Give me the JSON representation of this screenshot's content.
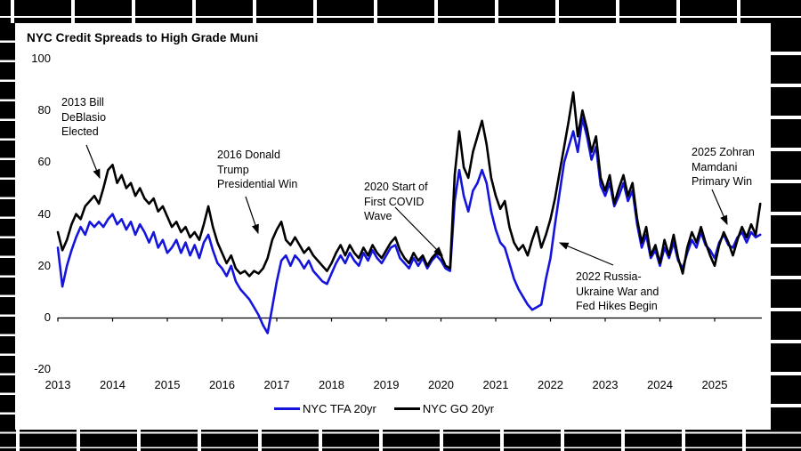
{
  "title": "NYC Credit Spreads to High Grade Muni",
  "colors": {
    "tfa": "#1414DC",
    "go": "#000000",
    "axis": "#000000",
    "background": "#ffffff",
    "border": "#000000"
  },
  "legend": [
    {
      "label": "NYC TFA 20yr",
      "color_key": "tfa"
    },
    {
      "label": "NYC GO 20yr",
      "color_key": "go"
    }
  ],
  "annotations": [
    {
      "lines": [
        "2013 Bill",
        "DeBlasio",
        "Elected"
      ]
    },
    {
      "lines": [
        "2016 Donald",
        "Trump",
        "Presidential Win"
      ]
    },
    {
      "lines": [
        "2020 Start of",
        "First COVID",
        "Wave"
      ]
    },
    {
      "lines": [
        "2022 Russia-",
        "Ukraine War and",
        "Fed Hikes Begin"
      ]
    },
    {
      "lines": [
        "2025 Zohran",
        "Mamdani",
        "Primary Win"
      ]
    }
  ],
  "chart_data": {
    "type": "line",
    "title": "NYC Credit Spreads to High Grade Muni",
    "xlabel": "",
    "ylabel": "",
    "grid": false,
    "legend_position": "bottom",
    "ylim": [
      -20,
      100
    ],
    "xlim": [
      2013,
      2025.9
    ],
    "y_ticks": [
      100,
      80,
      60,
      40,
      20,
      0,
      -20
    ],
    "x_ticks": [
      2013,
      2014,
      2015,
      2016,
      2017,
      2018,
      2019,
      2020,
      2021,
      2022,
      2023,
      2024,
      2025
    ],
    "x_start": 2013.0,
    "x_step": 0.083333,
    "series": [
      {
        "name": "NYC TFA 20yr",
        "color_key": "tfa",
        "values": [
          27,
          12,
          20,
          26,
          31,
          35,
          32,
          37,
          35,
          37,
          35,
          38,
          40,
          36,
          38,
          34,
          37,
          32,
          36,
          33,
          29,
          33,
          27,
          30,
          25,
          27,
          30,
          25,
          29,
          24,
          28,
          23,
          29,
          32,
          26,
          21,
          19,
          16,
          20,
          14,
          11,
          9,
          7,
          4,
          1,
          -3,
          -6,
          4,
          14,
          22,
          24,
          20,
          24,
          22,
          19,
          22,
          18,
          16,
          14,
          13,
          17,
          21,
          24,
          21,
          25,
          22,
          20,
          25,
          22,
          26,
          23,
          21,
          24,
          27,
          28,
          23,
          21,
          19,
          23,
          20,
          23,
          19,
          22,
          24,
          22,
          19,
          18,
          45,
          57,
          47,
          41,
          49,
          52,
          57,
          52,
          41,
          34,
          29,
          27,
          21,
          15,
          11,
          8,
          5,
          3,
          4,
          5,
          15,
          23,
          36,
          48,
          60,
          66,
          72,
          64,
          77,
          70,
          61,
          66,
          51,
          47,
          52,
          43,
          47,
          52,
          45,
          49,
          36,
          27,
          32,
          23,
          26,
          20,
          27,
          23,
          29,
          22,
          19,
          25,
          30,
          27,
          33,
          28,
          26,
          23,
          29,
          32,
          28,
          27,
          31,
          33,
          29,
          33,
          31,
          32
        ]
      },
      {
        "name": "NYC GO 20yr",
        "color_key": "go",
        "values": [
          33,
          26,
          30,
          36,
          40,
          38,
          43,
          45,
          47,
          44,
          50,
          57,
          59,
          52,
          55,
          50,
          52,
          47,
          50,
          46,
          44,
          46,
          41,
          43,
          39,
          35,
          37,
          33,
          35,
          31,
          33,
          30,
          36,
          43,
          35,
          29,
          25,
          21,
          24,
          19,
          17,
          18,
          16,
          18,
          17,
          19,
          23,
          30,
          34,
          37,
          30,
          28,
          31,
          28,
          25,
          27,
          24,
          22,
          20,
          18,
          21,
          25,
          28,
          24,
          28,
          25,
          23,
          27,
          24,
          28,
          25,
          23,
          26,
          29,
          31,
          26,
          23,
          21,
          25,
          22,
          24,
          20,
          23,
          25,
          24,
          20,
          19,
          55,
          72,
          58,
          54,
          64,
          70,
          76,
          67,
          54,
          47,
          42,
          45,
          35,
          29,
          26,
          28,
          24,
          30,
          35,
          27,
          32,
          38,
          46,
          56,
          66,
          76,
          87,
          70,
          80,
          73,
          64,
          70,
          54,
          49,
          55,
          44,
          50,
          55,
          47,
          52,
          38,
          29,
          35,
          24,
          28,
          21,
          30,
          24,
          32,
          23,
          17,
          27,
          33,
          29,
          35,
          29,
          24,
          20,
          28,
          33,
          29,
          24,
          30,
          35,
          31,
          36,
          32,
          44
        ]
      }
    ],
    "annotations": [
      {
        "text": "2013 Bill DeBlasio Elected",
        "points_at": {
          "x": 2013.8,
          "y": 54
        }
      },
      {
        "text": "2016 Donald Trump Presidential Win",
        "points_at": {
          "x": 2016.7,
          "y": 33
        }
      },
      {
        "text": "2020 Start of First COVID Wave",
        "points_at": {
          "x": 2020.0,
          "y": 24
        }
      },
      {
        "text": "2022 Russia-Ukraine War and Fed Hikes Begin",
        "points_at": {
          "x": 2022.2,
          "y": 29
        }
      },
      {
        "text": "2025 Zohran Mamdani Primary Win",
        "points_at": {
          "x": 2025.2,
          "y": 36
        }
      }
    ]
  }
}
